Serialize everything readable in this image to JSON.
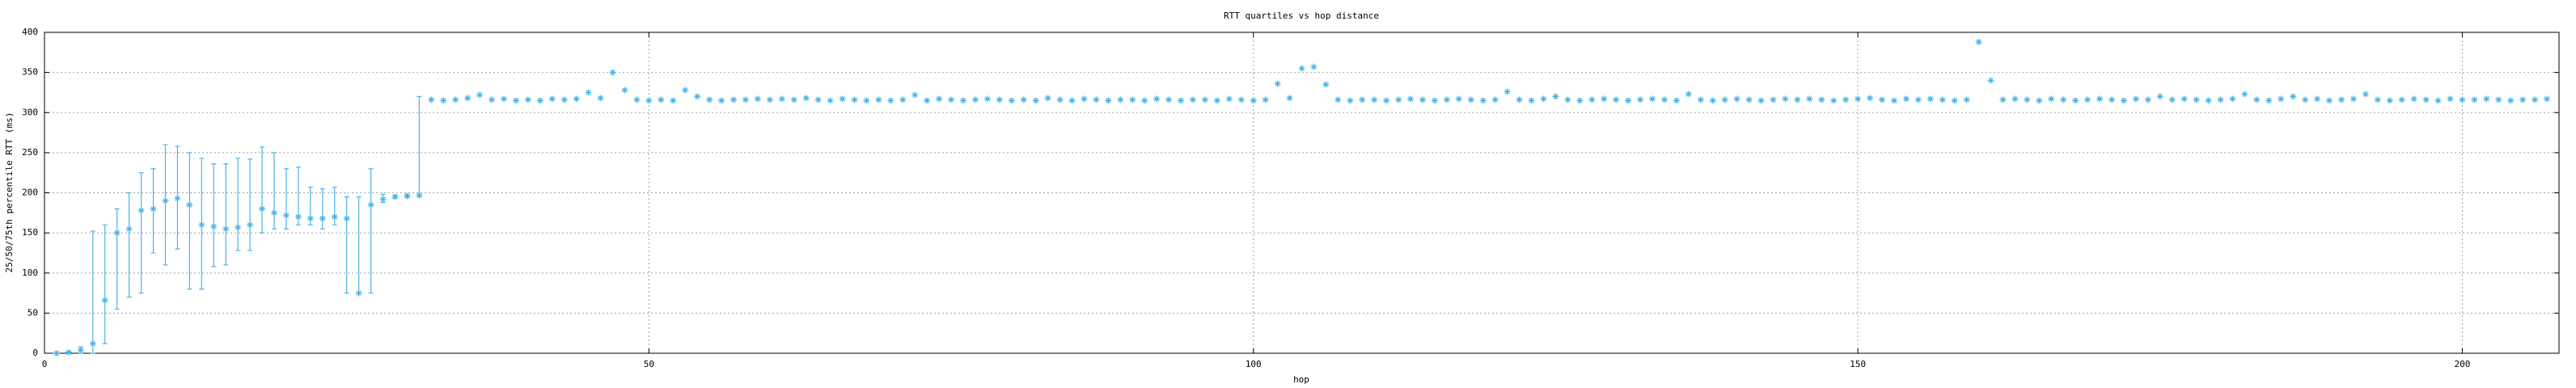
{
  "chart_data": {
    "type": "errorpoints",
    "title": "RTT quartiles vs hop distance",
    "xlabel": "hop",
    "ylabel": "25/50/75th percentile RTT (ms)",
    "color": "#4db3e6",
    "grid": true,
    "xlim": [
      0,
      208
    ],
    "ylim": [
      0,
      400
    ],
    "xticks": [
      0,
      50,
      100,
      150,
      200
    ],
    "yticks": [
      0,
      50,
      100,
      150,
      200,
      250,
      300,
      350,
      400
    ],
    "x": [
      1,
      2,
      3,
      4,
      5,
      6,
      7,
      8,
      9,
      10,
      11,
      12,
      13,
      14,
      15,
      16,
      17,
      18,
      19,
      20,
      21,
      22,
      23,
      24,
      25,
      26,
      27,
      28,
      29,
      30,
      31,
      32,
      33,
      34,
      35,
      36,
      37,
      38,
      39,
      40,
      41,
      42,
      43,
      44,
      45,
      46,
      47,
      48,
      49,
      50,
      51,
      52,
      53,
      54,
      55,
      56,
      57,
      58,
      59,
      60,
      61,
      62,
      63,
      64,
      65,
      66,
      67,
      68,
      69,
      70,
      71,
      72,
      73,
      74,
      75,
      76,
      77,
      78,
      79,
      80,
      81,
      82,
      83,
      84,
      85,
      86,
      87,
      88,
      89,
      90,
      91,
      92,
      93,
      94,
      95,
      96,
      97,
      98,
      99,
      100,
      101,
      102,
      103,
      104,
      105,
      106,
      107,
      108,
      109,
      110,
      111,
      112,
      113,
      114,
      115,
      116,
      117,
      118,
      119,
      120,
      121,
      122,
      123,
      124,
      125,
      126,
      127,
      128,
      129,
      130,
      131,
      132,
      133,
      134,
      135,
      136,
      137,
      138,
      139,
      140,
      141,
      142,
      143,
      144,
      145,
      146,
      147,
      148,
      149,
      150,
      151,
      152,
      153,
      154,
      155,
      156,
      157,
      158,
      159,
      160,
      161,
      162,
      163,
      164,
      165,
      166,
      167,
      168,
      169,
      170,
      171,
      172,
      173,
      174,
      175,
      176,
      177,
      178,
      179,
      180,
      181,
      182,
      183,
      184,
      185,
      186,
      187,
      188,
      189,
      190,
      191,
      192,
      193,
      194,
      195,
      196,
      197,
      198,
      199,
      200,
      201,
      202,
      203,
      204,
      205,
      206,
      207
    ],
    "values": [
      0,
      1,
      4,
      12,
      66,
      150,
      155,
      178,
      180,
      190,
      193,
      185,
      160,
      158,
      155,
      157,
      160,
      180,
      175,
      172,
      170,
      168,
      168,
      170,
      168,
      75,
      185,
      192,
      195,
      196,
      197,
      316,
      315,
      316,
      318,
      322,
      316,
      317,
      315,
      316,
      315,
      317,
      316,
      317,
      325,
      318,
      350,
      328,
      316,
      315,
      316,
      315,
      328,
      320,
      316,
      315,
      316,
      316,
      317,
      316,
      317,
      316,
      318,
      316,
      315,
      317,
      316,
      315,
      316,
      315,
      316,
      322,
      315,
      317,
      316,
      315,
      316,
      317,
      316,
      315,
      316,
      315,
      318,
      316,
      315,
      317,
      316,
      315,
      316,
      316,
      315,
      317,
      316,
      315,
      316,
      316,
      315,
      317,
      316,
      315,
      316,
      336,
      318,
      355,
      357,
      335,
      316,
      315,
      316,
      316,
      315,
      316,
      317,
      316,
      315,
      316,
      317,
      316,
      315,
      316,
      326,
      316,
      315,
      317,
      320,
      316,
      315,
      316,
      317,
      316,
      315,
      316,
      317,
      316,
      315,
      323,
      316,
      315,
      316,
      317,
      316,
      315,
      316,
      317,
      316,
      317,
      316,
      315,
      316,
      317,
      318,
      316,
      315,
      317,
      316,
      317,
      316,
      315,
      316,
      388,
      340,
      316,
      317,
      316,
      315,
      317,
      316,
      315,
      316,
      317,
      316,
      315,
      317,
      316,
      320,
      316,
      317,
      316,
      315,
      316,
      317,
      323,
      316,
      315,
      317,
      320,
      316,
      317,
      315,
      316,
      317,
      323,
      316,
      315,
      316,
      317,
      316,
      315,
      317,
      316,
      316,
      317,
      316,
      315,
      316,
      316,
      317
    ],
    "low": [
      0,
      0,
      0,
      0,
      12,
      55,
      70,
      75,
      125,
      110,
      130,
      80,
      80,
      108,
      110,
      128,
      128,
      150,
      155,
      155,
      160,
      160,
      155,
      160,
      75,
      75,
      75,
      188,
      193,
      194,
      195,
      null,
      null,
      null,
      null,
      null,
      null,
      null,
      null,
      null,
      null,
      null,
      null,
      null,
      null,
      null,
      null,
      null,
      null,
      null,
      null,
      null,
      null,
      null,
      null,
      null,
      null,
      null,
      null,
      null,
      null,
      null,
      null,
      null,
      null,
      null,
      null,
      null,
      null,
      null,
      null,
      null,
      null,
      null,
      null,
      null,
      null,
      null,
      null,
      null,
      null,
      null,
      null,
      null,
      null,
      null,
      null,
      null,
      null,
      null,
      null,
      null,
      null,
      null,
      null,
      null,
      null,
      null,
      null,
      null,
      null,
      null,
      null,
      null,
      null,
      null,
      null,
      null,
      null,
      null,
      null,
      null,
      null,
      null,
      null,
      null,
      null,
      null,
      null,
      null,
      null,
      null,
      null,
      null,
      null,
      null,
      null,
      null,
      null,
      null,
      null,
      null,
      null,
      null,
      null,
      null,
      null,
      null,
      null,
      null,
      null,
      null,
      null,
      null,
      null,
      null,
      null,
      null,
      null,
      null,
      null,
      null,
      null,
      null,
      null,
      null,
      null,
      null,
      null,
      null,
      null,
      null,
      null,
      null,
      null,
      null,
      null,
      null,
      null,
      null,
      null,
      null,
      null,
      null,
      null,
      null,
      null,
      null,
      null,
      null,
      null,
      null,
      null,
      null,
      null,
      null,
      null,
      null,
      null,
      null,
      null,
      null,
      null,
      null,
      null,
      null,
      null,
      null,
      null,
      null,
      null,
      null,
      null,
      null,
      null,
      null,
      null
    ],
    "high": [
      0,
      2,
      8,
      152,
      160,
      180,
      200,
      225,
      230,
      260,
      258,
      250,
      243,
      236,
      236,
      243,
      242,
      257,
      250,
      230,
      232,
      207,
      205,
      207,
      195,
      195,
      230,
      198,
      197,
      198,
      320,
      null,
      null,
      null,
      null,
      null,
      null,
      null,
      null,
      null,
      null,
      null,
      null,
      null,
      null,
      null,
      null,
      null,
      null,
      null,
      null,
      null,
      null,
      null,
      null,
      null,
      null,
      null,
      null,
      null,
      null,
      null,
      null,
      null,
      null,
      null,
      null,
      null,
      null,
      null,
      null,
      null,
      null,
      null,
      null,
      null,
      null,
      null,
      null,
      null,
      null,
      null,
      null,
      null,
      null,
      null,
      null,
      null,
      null,
      null,
      null,
      null,
      null,
      null,
      null,
      null,
      null,
      null,
      null,
      null,
      null,
      null,
      null,
      null,
      null,
      null,
      null,
      null,
      null,
      null,
      null,
      null,
      null,
      null,
      null,
      null,
      null,
      null,
      null,
      null,
      null,
      null,
      null,
      null,
      null,
      null,
      null,
      null,
      null,
      null,
      null,
      null,
      null,
      null,
      null,
      null,
      null,
      null,
      null,
      null,
      null,
      null,
      null,
      null,
      null,
      null,
      null,
      null,
      null,
      null,
      null,
      null,
      null,
      null,
      null,
      null,
      null,
      null,
      null,
      null,
      null,
      null,
      null,
      null,
      null,
      null,
      null,
      null,
      null,
      null,
      null,
      null,
      null,
      null,
      null,
      null,
      null,
      null,
      null,
      null,
      null,
      null,
      null,
      null,
      null,
      null,
      null,
      null,
      null,
      null,
      null,
      null,
      null,
      null,
      null,
      null,
      null,
      null,
      null,
      null,
      null,
      null,
      null,
      null,
      null,
      null,
      null
    ]
  }
}
